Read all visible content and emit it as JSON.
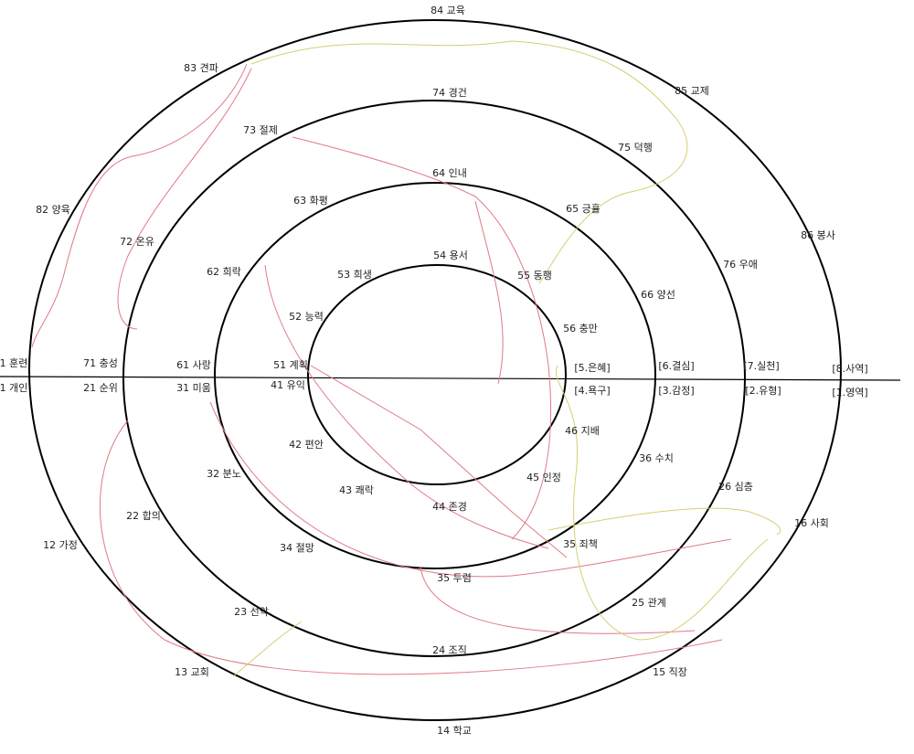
{
  "nodes": [
    {
      "label": "84 교육"
    },
    {
      "label": "83 견파"
    },
    {
      "label": "85 교제"
    },
    {
      "label": "74 경건"
    },
    {
      "label": "73 절제"
    },
    {
      "label": "75 덕행"
    },
    {
      "label": "64 인내"
    },
    {
      "label": "82 양육"
    },
    {
      "label": "63 화평"
    },
    {
      "label": "65 긍휼"
    },
    {
      "label": "86 봉사"
    },
    {
      "label": "72 온유"
    },
    {
      "label": "54 용서"
    },
    {
      "label": "76 우애"
    },
    {
      "label": "62 희락"
    },
    {
      "label": "53 희생"
    },
    {
      "label": "55 동행"
    },
    {
      "label": "66 양선"
    },
    {
      "label": "52 능력"
    },
    {
      "label": "56 충만"
    },
    {
      "label": "1 훈련"
    },
    {
      "label": "71 충성"
    },
    {
      "label": "61 사랑"
    },
    {
      "label": "51 계획"
    },
    {
      "label": "[5.은혜]"
    },
    {
      "label": "[6.결심]"
    },
    {
      "label": "[7.실천]"
    },
    {
      "label": "[8.사역]"
    },
    {
      "label": "1 개인"
    },
    {
      "label": "21 순위"
    },
    {
      "label": "31 미움"
    },
    {
      "label": "41 유익"
    },
    {
      "label": "[4.욕구]"
    },
    {
      "label": "[3.감정]"
    },
    {
      "label": "[2.유형]"
    },
    {
      "label": "[1.영역]"
    },
    {
      "label": "46 지배"
    },
    {
      "label": "42 편안"
    },
    {
      "label": "36 수치"
    },
    {
      "label": "32 분노"
    },
    {
      "label": "45 인정"
    },
    {
      "label": "26 심층"
    },
    {
      "label": "43 쾌락"
    },
    {
      "label": "44 존경"
    },
    {
      "label": "22 합의"
    },
    {
      "label": "16 사회"
    },
    {
      "label": "12 가정"
    },
    {
      "label": "35 죄책"
    },
    {
      "label": "34 절망"
    },
    {
      "label": "35 두렴"
    },
    {
      "label": "25 관계"
    },
    {
      "label": "23 선악"
    },
    {
      "label": "24 조직"
    },
    {
      "label": "13 교회"
    },
    {
      "label": "15 직장"
    },
    {
      "label": "14 학교"
    }
  ]
}
